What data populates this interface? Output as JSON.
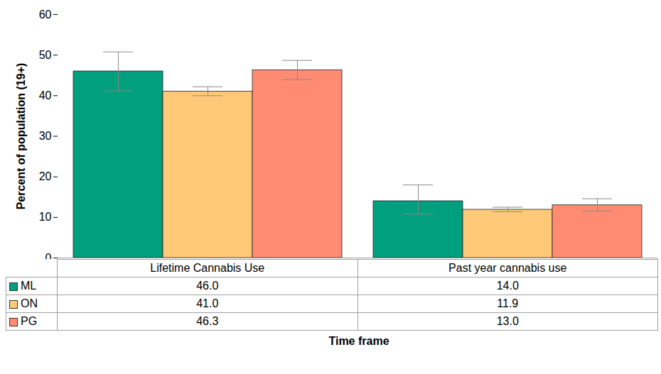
{
  "chart_data": {
    "type": "bar",
    "x_label": "Time frame",
    "y_label": "Percent of population (19+)",
    "categories": [
      "Lifetime Cannabis Use",
      "Past year cannabis use"
    ],
    "series": [
      {
        "name": "ML",
        "color": "#00A07E",
        "values": [
          46.0,
          14.0
        ],
        "value_labels": [
          "46.0",
          "14.0"
        ],
        "error_low": [
          41.2,
          10.8
        ],
        "error_high": [
          50.8,
          18.0
        ]
      },
      {
        "name": "ON",
        "color": "#FFC978",
        "values": [
          41.0,
          11.9
        ],
        "value_labels": [
          "41.0",
          "11.9"
        ],
        "error_low": [
          40.0,
          11.4
        ],
        "error_high": [
          42.2,
          12.5
        ]
      },
      {
        "name": "PG",
        "color": "#FF8C72",
        "values": [
          46.3,
          13.0
        ],
        "value_labels": [
          "46.3",
          "13.0"
        ],
        "error_low": [
          44.0,
          11.6
        ],
        "error_high": [
          48.7,
          14.6
        ]
      }
    ],
    "ylim": [
      0,
      60
    ],
    "yticks": [
      0,
      10,
      20,
      30,
      40,
      50,
      60
    ],
    "grid": false,
    "data_labels": false,
    "tick_labels": "y",
    "legend": "bottom"
  }
}
